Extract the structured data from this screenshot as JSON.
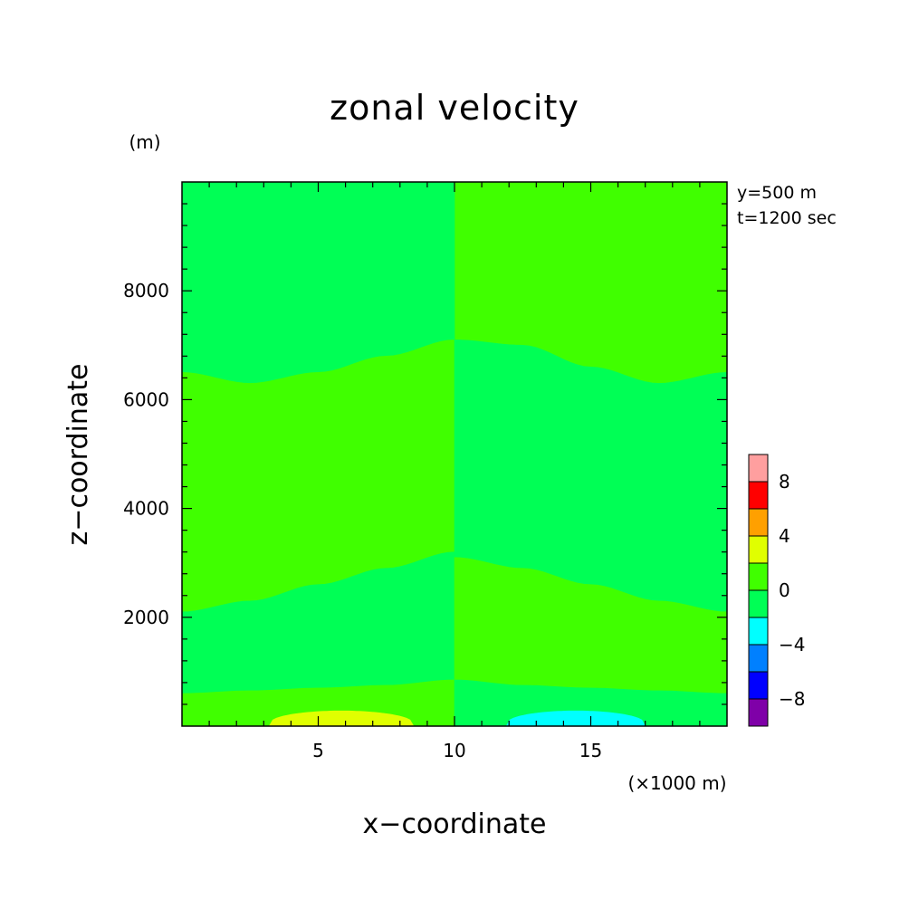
{
  "chart_data": {
    "type": "heatmap",
    "title": "zonal velocity",
    "xlabel": "x−coordinate",
    "ylabel": "z−coordinate",
    "x_unit": "(×1000 m)",
    "y_unit": "(m)",
    "annotations": [
      "y=500 m",
      "t=1200 sec"
    ],
    "xlim": [
      0,
      20
    ],
    "ylim": [
      0,
      10000
    ],
    "x_ticks": [
      5,
      10,
      15
    ],
    "y_ticks": [
      2000,
      4000,
      6000,
      8000
    ],
    "colorbar": {
      "levels": [
        -10,
        -8,
        -6,
        -4,
        -2,
        0,
        2,
        4,
        6,
        8,
        10
      ],
      "tick_labels": [
        -8,
        -4,
        0,
        4,
        8
      ],
      "colors": [
        "#7f00a8",
        "#0000ff",
        "#0080ff",
        "#00ffff",
        "#00ff55",
        "#40ff00",
        "#e0ff00",
        "#ffa000",
        "#ff0000",
        "#ff9f9f"
      ]
    },
    "regions": [
      {
        "level": "0 to 2",
        "color": "#40ff00",
        "x": [
          10,
          20
        ],
        "z_bottom": [
          7100,
          7000,
          6600,
          6300,
          6500
        ],
        "z_top": 10000
      },
      {
        "level": "-2 to 0",
        "color": "#00ff55",
        "x": [
          0,
          10
        ],
        "z_bottom": [
          6500,
          6300,
          6500,
          6800,
          7100
        ],
        "z_top": 10000
      },
      {
        "level": "0 to 2",
        "color": "#40ff00",
        "x": [
          0,
          10
        ],
        "z_bottom": [
          2100,
          2300,
          2600,
          2900,
          3200
        ],
        "z_top": [
          6500,
          6300,
          6500,
          6800,
          7100
        ]
      },
      {
        "level": "-2 to 0",
        "color": "#00ff55",
        "x": [
          10,
          20
        ],
        "z_bottom": [
          3100,
          2900,
          2600,
          2300,
          2100
        ],
        "z_top": [
          7100,
          7000,
          6600,
          6300,
          6500
        ]
      },
      {
        "level": "-2 to 0",
        "color": "#00ff55",
        "x": [
          0,
          10
        ],
        "z_bottom": [
          600,
          650,
          700,
          750,
          850
        ],
        "z_top": [
          2100,
          2300,
          2600,
          2900,
          3200
        ]
      },
      {
        "level": "0 to 2",
        "color": "#40ff00",
        "x": [
          10,
          20
        ],
        "z_bottom": [
          850,
          750,
          700,
          650,
          600
        ],
        "z_top": [
          3100,
          2900,
          2600,
          2300,
          2100
        ]
      },
      {
        "level": "0 to 2",
        "color": "#40ff00",
        "x": [
          0,
          10
        ],
        "z_bottom": 0,
        "z_top": [
          600,
          650,
          700,
          750,
          850
        ]
      },
      {
        "level": "-2 to 0",
        "color": "#00ff55",
        "x": [
          10,
          20
        ],
        "z_bottom": 0,
        "z_top": [
          850,
          750,
          700,
          650,
          600
        ]
      },
      {
        "level": "2 to 4",
        "color": "#e0ff00",
        "x_range": [
          3.2,
          8.5
        ],
        "z_peak": 280
      },
      {
        "level": "-4 to -2",
        "color": "#00ffff",
        "x_range": [
          11.9,
          17.0
        ],
        "z_peak": 280
      }
    ]
  }
}
